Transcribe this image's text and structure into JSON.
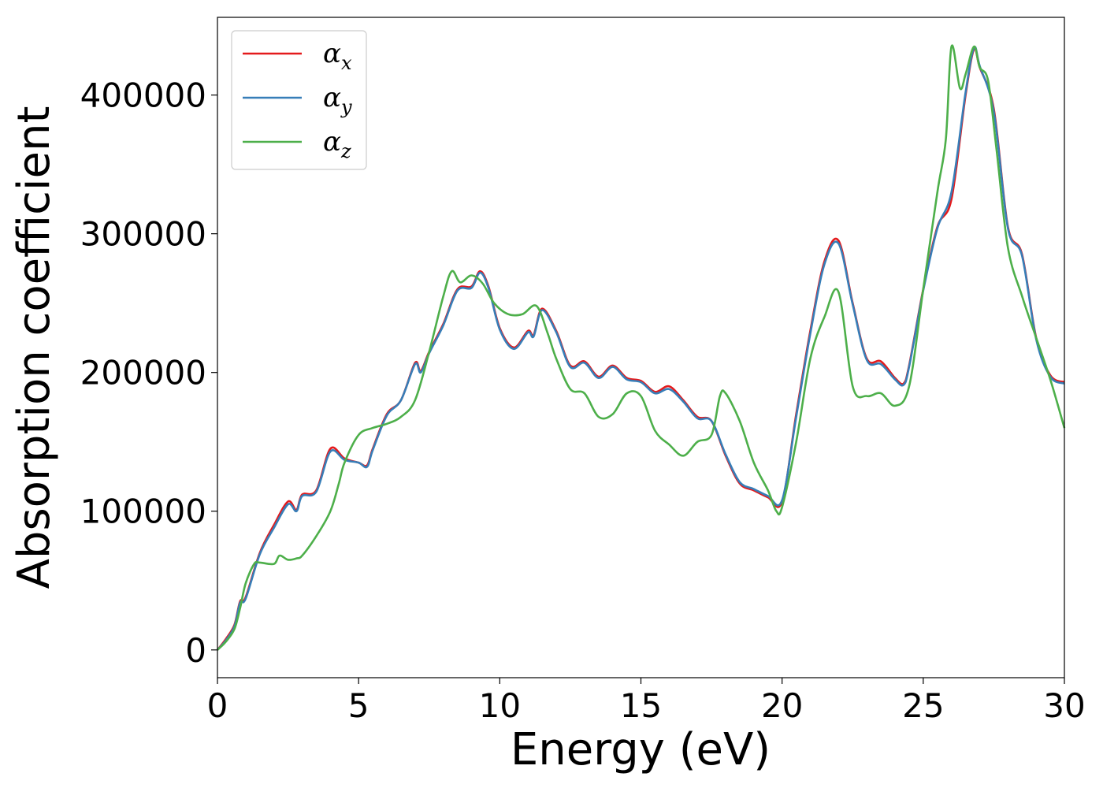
{
  "chart_data": {
    "type": "line",
    "title": "",
    "xlabel": "Energy (eV)",
    "ylabel": "Absorption coefficient",
    "xlim": [
      0,
      30
    ],
    "ylim": [
      -20000,
      456000
    ],
    "xticks": [
      0,
      5,
      10,
      15,
      20,
      25,
      30
    ],
    "yticks": [
      0,
      100000,
      200000,
      300000,
      400000
    ],
    "grid": false,
    "legend_position": "top-left",
    "series": [
      {
        "name": "α_x",
        "name_base": "α",
        "name_sub": "x",
        "color": "#e41a1c",
        "x": [
          0,
          0.3,
          0.6,
          0.8,
          1.0,
          1.5,
          2.0,
          2.5,
          2.8,
          3.0,
          3.5,
          4.0,
          4.5,
          5.0,
          5.3,
          5.5,
          6.0,
          6.5,
          7.0,
          7.2,
          7.5,
          8.0,
          8.5,
          9.0,
          9.3,
          9.6,
          10.0,
          10.5,
          11.0,
          11.2,
          11.5,
          12.0,
          12.5,
          13.0,
          13.5,
          14.0,
          14.5,
          15.0,
          15.5,
          16.0,
          16.5,
          17.0,
          17.5,
          18.0,
          18.5,
          19.0,
          19.5,
          20.0,
          20.5,
          21.0,
          21.5,
          22.0,
          22.5,
          23.0,
          23.5,
          24.0,
          24.3,
          24.5,
          25.0,
          25.5,
          26.0,
          26.5,
          26.8,
          27.0,
          27.5,
          28.0,
          28.5,
          29.0,
          29.5,
          30.0
        ],
        "values": [
          0,
          8000,
          18000,
          35000,
          38000,
          70000,
          90000,
          107000,
          101000,
          112000,
          115000,
          145000,
          138000,
          135000,
          133000,
          145000,
          170000,
          180000,
          207000,
          201000,
          215000,
          235000,
          260000,
          262000,
          273000,
          262000,
          232000,
          218000,
          230000,
          227000,
          246000,
          230000,
          205000,
          208000,
          197000,
          205000,
          196000,
          194000,
          186000,
          190000,
          180000,
          168000,
          165000,
          140000,
          120000,
          115000,
          110000,
          107000,
          170000,
          230000,
          280000,
          295000,
          250000,
          210000,
          208000,
          196000,
          192000,
          205000,
          260000,
          305000,
          325000,
          400000,
          433000,
          420000,
          390000,
          305000,
          285000,
          225000,
          198000,
          193000
        ]
      },
      {
        "name": "α_y",
        "name_base": "α",
        "name_sub": "y",
        "color": "#377eb8",
        "x": [
          0,
          0.3,
          0.6,
          0.8,
          1.0,
          1.5,
          2.0,
          2.5,
          2.8,
          3.0,
          3.5,
          4.0,
          4.5,
          5.0,
          5.3,
          5.5,
          6.0,
          6.5,
          7.0,
          7.2,
          7.5,
          8.0,
          8.5,
          9.0,
          9.3,
          9.6,
          10.0,
          10.5,
          11.0,
          11.2,
          11.5,
          12.0,
          12.5,
          13.0,
          13.5,
          14.0,
          14.5,
          15.0,
          15.5,
          16.0,
          16.5,
          17.0,
          17.5,
          18.0,
          18.5,
          19.0,
          19.5,
          20.0,
          20.5,
          21.0,
          21.5,
          22.0,
          22.5,
          23.0,
          23.5,
          24.0,
          24.3,
          24.5,
          25.0,
          25.5,
          26.0,
          26.5,
          26.8,
          27.0,
          27.5,
          28.0,
          28.5,
          29.0,
          29.5,
          30.0
        ],
        "values": [
          0,
          7000,
          17000,
          34000,
          37000,
          69000,
          88000,
          105000,
          100000,
          111000,
          114000,
          143000,
          137000,
          135000,
          132000,
          144000,
          169000,
          180000,
          206000,
          200000,
          214000,
          234000,
          259000,
          261000,
          272000,
          261000,
          231000,
          217000,
          229000,
          226000,
          245000,
          229000,
          204000,
          207000,
          196000,
          204000,
          195000,
          193000,
          185000,
          188000,
          179000,
          167000,
          165000,
          141000,
          121000,
          116000,
          111000,
          108000,
          168000,
          228000,
          278000,
          293000,
          249000,
          209000,
          206000,
          195000,
          191000,
          204000,
          259000,
          304000,
          330000,
          402000,
          434000,
          421000,
          388000,
          304000,
          284000,
          224000,
          197000,
          192000
        ]
      },
      {
        "name": "α_z",
        "name_base": "α",
        "name_sub": "z",
        "color": "#4daf4a",
        "x": [
          0,
          0.3,
          0.6,
          0.8,
          1.0,
          1.3,
          1.5,
          2.0,
          2.2,
          2.5,
          2.8,
          3.0,
          3.5,
          4.0,
          4.3,
          4.5,
          5.0,
          5.5,
          6.0,
          6.5,
          7.0,
          7.5,
          8.0,
          8.3,
          8.6,
          9.0,
          9.4,
          9.8,
          10.3,
          10.8,
          11.3,
          11.7,
          12.0,
          12.5,
          13.0,
          13.5,
          14.0,
          14.5,
          15.0,
          15.5,
          16.0,
          16.5,
          17.0,
          17.5,
          17.8,
          18.0,
          18.5,
          19.0,
          19.5,
          19.8,
          20.0,
          20.5,
          21.0,
          21.5,
          22.0,
          22.5,
          23.0,
          23.5,
          24.0,
          24.5,
          25.0,
          25.5,
          25.8,
          26.0,
          26.3,
          26.5,
          26.8,
          27.0,
          27.3,
          27.6,
          28.0,
          28.5,
          29.0,
          29.5,
          30.0
        ],
        "values": [
          0,
          6000,
          15000,
          30000,
          48000,
          62000,
          63000,
          62000,
          68000,
          65000,
          66000,
          68000,
          82000,
          100000,
          120000,
          135000,
          155000,
          160000,
          163000,
          168000,
          180000,
          215000,
          255000,
          273000,
          265000,
          270000,
          264000,
          250000,
          242000,
          242000,
          248000,
          228000,
          210000,
          188000,
          185000,
          168000,
          170000,
          185000,
          183000,
          158000,
          148000,
          140000,
          150000,
          155000,
          183000,
          185000,
          165000,
          135000,
          115000,
          100000,
          103000,
          150000,
          210000,
          240000,
          258000,
          190000,
          183000,
          185000,
          176000,
          190000,
          260000,
          330000,
          368000,
          435000,
          405000,
          415000,
          435000,
          420000,
          410000,
          360000,
          290000,
          255000,
          225000,
          195000,
          160000
        ]
      }
    ]
  }
}
